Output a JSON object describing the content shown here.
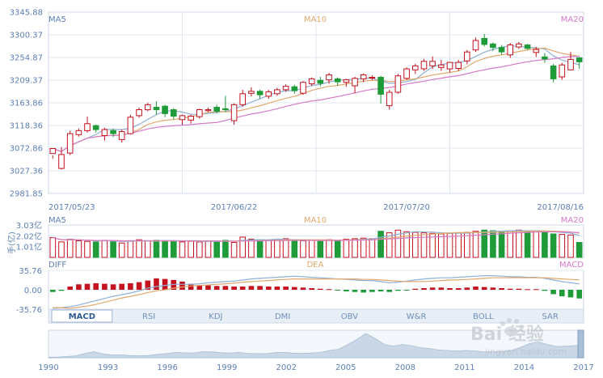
{
  "chart_data": [
    {
      "type": "candlestick",
      "title": "",
      "legend": {
        "left": "MA5",
        "center": "MA10",
        "right": "MA20"
      },
      "y_ticks": [
        "3345.88",
        "3300.37",
        "3254.87",
        "3209.37",
        "3163.86",
        "3118.36",
        "3072.86",
        "3027.36",
        "2981.85"
      ],
      "ylim": [
        2981.85,
        3345.88
      ],
      "date_labels": [
        "2017/05/23",
        "2017/06/22",
        "2017/07/20",
        "2017/08/16"
      ],
      "date_label_index": [
        0,
        21,
        41,
        61
      ],
      "ohlc": [
        [
          3062,
          3072,
          3058,
          3052
        ],
        [
          3032,
          3060,
          3075,
          3030
        ],
        [
          3063,
          3102,
          3108,
          3059
        ],
        [
          3100,
          3108,
          3112,
          3096
        ],
        [
          3108,
          3122,
          3136,
          3104
        ],
        [
          3118,
          3110,
          3120,
          3104
        ],
        [
          3098,
          3110,
          3114,
          3088
        ],
        [
          3108,
          3102,
          3112,
          3095
        ],
        [
          3090,
          3106,
          3110,
          3084
        ],
        [
          3102,
          3135,
          3140,
          3100
        ],
        [
          3138,
          3150,
          3154,
          3134
        ],
        [
          3150,
          3160,
          3164,
          3147
        ],
        [
          3155,
          3150,
          3167,
          3140
        ],
        [
          3157,
          3142,
          3160,
          3135
        ],
        [
          3150,
          3137,
          3153,
          3130
        ],
        [
          3130,
          3138,
          3140,
          3120
        ],
        [
          3129,
          3137,
          3140,
          3122
        ],
        [
          3136,
          3150,
          3152,
          3132
        ],
        [
          3148,
          3150,
          3154,
          3145
        ],
        [
          3155,
          3147,
          3160,
          3143
        ],
        [
          3152,
          3150,
          3178,
          3145
        ],
        [
          3128,
          3160,
          3163,
          3120
        ],
        [
          3160,
          3182,
          3190,
          3156
        ],
        [
          3183,
          3187,
          3195,
          3177
        ],
        [
          3187,
          3180,
          3190,
          3172
        ],
        [
          3177,
          3186,
          3190,
          3172
        ],
        [
          3182,
          3190,
          3194,
          3178
        ],
        [
          3190,
          3197,
          3201,
          3186
        ],
        [
          3196,
          3188,
          3200,
          3182
        ],
        [
          3183,
          3205,
          3207,
          3180
        ],
        [
          3202,
          3212,
          3215,
          3198
        ],
        [
          3209,
          3203,
          3216,
          3197
        ],
        [
          3210,
          3220,
          3224,
          3202
        ],
        [
          3212,
          3206,
          3215,
          3198
        ],
        [
          3205,
          3210,
          3212,
          3196
        ],
        [
          3198,
          3213,
          3216,
          3183
        ],
        [
          3212,
          3220,
          3223,
          3205
        ],
        [
          3215,
          3215,
          3219,
          3210
        ],
        [
          3215,
          3181,
          3218,
          3162
        ],
        [
          3158,
          3185,
          3190,
          3150
        ],
        [
          3185,
          3218,
          3222,
          3182
        ],
        [
          3213,
          3232,
          3235,
          3210
        ],
        [
          3230,
          3238,
          3242,
          3222
        ],
        [
          3232,
          3247,
          3252,
          3228
        ],
        [
          3238,
          3247,
          3257,
          3232
        ],
        [
          3235,
          3240,
          3250,
          3228
        ],
        [
          3232,
          3245,
          3246,
          3225
        ],
        [
          3233,
          3245,
          3250,
          3228
        ],
        [
          3248,
          3266,
          3270,
          3241
        ],
        [
          3270,
          3289,
          3295,
          3266
        ],
        [
          3293,
          3281,
          3302,
          3277
        ],
        [
          3282,
          3275,
          3285,
          3268
        ],
        [
          3275,
          3266,
          3280,
          3260
        ],
        [
          3260,
          3280,
          3284,
          3254
        ],
        [
          3276,
          3282,
          3286,
          3272
        ],
        [
          3280,
          3273,
          3282,
          3270
        ],
        [
          3265,
          3271,
          3276,
          3256
        ],
        [
          3256,
          3252,
          3264,
          3244
        ],
        [
          3238,
          3212,
          3242,
          3205
        ],
        [
          3216,
          3240,
          3244,
          3210
        ],
        [
          3230,
          3251,
          3266,
          3229
        ],
        [
          3254,
          3246,
          3256,
          3232
        ]
      ],
      "volume": [
        1.85,
        1.45,
        1.7,
        1.55,
        1.5,
        1.45,
        1.6,
        1.55,
        1.35,
        1.55,
        1.65,
        1.55,
        1.6,
        1.55,
        1.5,
        1.45,
        1.5,
        1.45,
        1.55,
        1.5,
        1.6,
        1.4,
        1.9,
        1.7,
        1.65,
        1.6,
        1.7,
        1.75,
        1.6,
        1.55,
        1.6,
        1.5,
        1.65,
        1.6,
        1.7,
        1.75,
        1.8,
        1.75,
        2.45,
        2.3,
        2.55,
        2.4,
        2.35,
        2.3,
        2.25,
        2.2,
        2.25,
        2.3,
        2.35,
        2.45,
        2.55,
        2.5,
        2.45,
        2.5,
        2.55,
        2.45,
        2.5,
        2.4,
        2.2,
        2.15,
        2.1,
        1.4
      ]
    },
    {
      "type": "bar",
      "title": "",
      "legend": {
        "left": "MA5",
        "center": "MA10",
        "right": "MA20"
      },
      "ylabel": "手(亿)",
      "y_ticks": [
        "3.03亿",
        "2.02亿",
        "1.01亿"
      ],
      "ylim": [
        0,
        3.03
      ]
    },
    {
      "type": "bar",
      "title": "",
      "legend": {
        "left": "DIFF",
        "center": "DEA",
        "right": "MACD"
      },
      "y_ticks": [
        "35.76",
        "0.00",
        "-35.76"
      ],
      "ylim": [
        -35.76,
        35.76
      ],
      "macd": [
        -4,
        -2,
        6,
        10,
        11,
        12,
        11,
        10,
        11,
        12,
        14,
        17,
        21,
        20,
        18,
        15,
        11,
        8,
        8,
        7,
        7,
        6,
        6,
        7,
        7,
        6,
        6,
        6,
        5,
        4,
        3,
        2,
        1,
        -1,
        -3,
        -4,
        -5,
        -4,
        -3,
        -4,
        -2,
        -1,
        2,
        3,
        4,
        4,
        3,
        3,
        4,
        6,
        5,
        4,
        3,
        2,
        2,
        1,
        1,
        -2,
        -8,
        -12,
        -14,
        -16
      ],
      "diff": [
        -34,
        -33,
        -31,
        -28,
        -24,
        -20,
        -16,
        -12,
        -9,
        -6,
        -2,
        3,
        6,
        8,
        10,
        10,
        10,
        11,
        13,
        14,
        15,
        16,
        18,
        20,
        21,
        22,
        23,
        24,
        25,
        24,
        23,
        22,
        21,
        20,
        19,
        18,
        17,
        17,
        15,
        13,
        14,
        16,
        18,
        20,
        21,
        22,
        22,
        23,
        24,
        25,
        26,
        26,
        25,
        24,
        24,
        23,
        23,
        21,
        18,
        15,
        13,
        11
      ],
      "dea": [
        -33,
        -33,
        -34,
        -32,
        -30,
        -27,
        -23,
        -19,
        -15,
        -12,
        -9,
        -5,
        -2,
        0,
        3,
        5,
        7,
        8,
        9,
        10,
        11,
        12,
        14,
        15,
        16,
        17,
        18,
        19,
        20,
        20,
        20,
        20,
        20,
        20,
        20,
        20,
        19,
        19,
        18,
        17,
        16,
        15,
        15,
        15,
        16,
        17,
        18,
        18,
        19,
        20,
        21,
        22,
        22,
        22,
        22,
        22,
        22,
        22,
        21,
        20,
        19,
        18
      ]
    },
    {
      "type": "area",
      "title": "",
      "x_ticks": [
        "1990",
        "1993",
        "1996",
        "1999",
        "2002",
        "2005",
        "2008",
        "2011",
        "2014",
        "2017"
      ],
      "values": [
        0.02,
        0.03,
        0.05,
        0.08,
        0.18,
        0.25,
        0.16,
        0.11,
        0.12,
        0.09,
        0.08,
        0.09,
        0.14,
        0.17,
        0.22,
        0.2,
        0.2,
        0.25,
        0.24,
        0.21,
        0.19,
        0.22,
        0.18,
        0.17,
        0.17,
        0.21,
        0.22,
        0.19,
        0.18,
        0.2,
        0.22,
        0.3,
        0.35,
        0.55,
        0.75,
        1.0,
        0.8,
        0.55,
        0.48,
        0.55,
        0.5,
        0.42,
        0.38,
        0.32,
        0.3,
        0.28,
        0.3,
        0.28,
        0.25,
        0.24,
        0.26,
        0.3,
        0.42,
        0.58,
        0.65,
        0.55,
        0.46,
        0.48,
        0.5,
        0.52
      ]
    }
  ],
  "tabs": [
    "MACD",
    "RSI",
    "KDJ",
    "DMI",
    "OBV",
    "W&R",
    "BOLL",
    "SAR"
  ],
  "active_tab": "MACD",
  "colors": {
    "up": "#c4121e",
    "down": "#1f9b39",
    "ma5": "#8fb0d6",
    "ma10": "#e2a86d",
    "ma20": "#d77ac6",
    "grid": "#e1e7f0",
    "axis_text": "#5a7fb5",
    "diff": "#8fb0d6",
    "dea": "#e2a86d"
  },
  "watermark": {
    "brand": "Bai 经验",
    "url": "jingyan.baidu.com"
  }
}
